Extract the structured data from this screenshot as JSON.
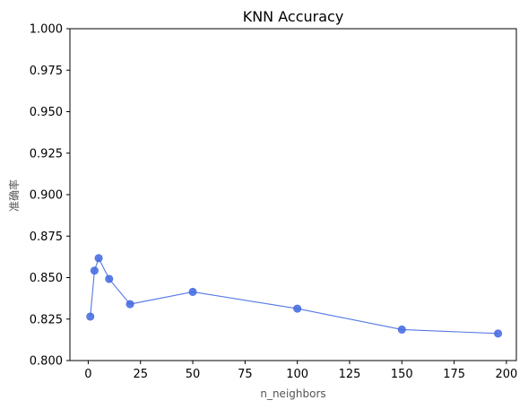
{
  "chart_data": {
    "type": "line",
    "title": "KNN Accuracy",
    "xlabel": "n_neighbors",
    "ylabel": "准确率",
    "xlim": [
      -8.75,
      204.75
    ],
    "ylim": [
      0.8,
      1.0
    ],
    "x_ticks": [
      0,
      25,
      50,
      75,
      100,
      125,
      150,
      175,
      200
    ],
    "x_tick_labels": [
      "0",
      "25",
      "50",
      "75",
      "100",
      "125",
      "150",
      "175",
      "200"
    ],
    "y_ticks": [
      0.8,
      0.825,
      0.85,
      0.875,
      0.9,
      0.925,
      0.95,
      0.975,
      1.0
    ],
    "y_tick_labels": [
      "0.800",
      "0.825",
      "0.850",
      "0.875",
      "0.900",
      "0.925",
      "0.950",
      "0.975",
      "1.000"
    ],
    "grid": false,
    "series": [
      {
        "color": "#4169e1",
        "marker": "circle",
        "x": [
          1,
          3,
          5,
          10,
          20,
          50,
          100,
          150,
          196
        ],
        "y": [
          0.8265,
          0.8542,
          0.8617,
          0.8492,
          0.834,
          0.8414,
          0.8313,
          0.8187,
          0.8163
        ]
      }
    ]
  }
}
